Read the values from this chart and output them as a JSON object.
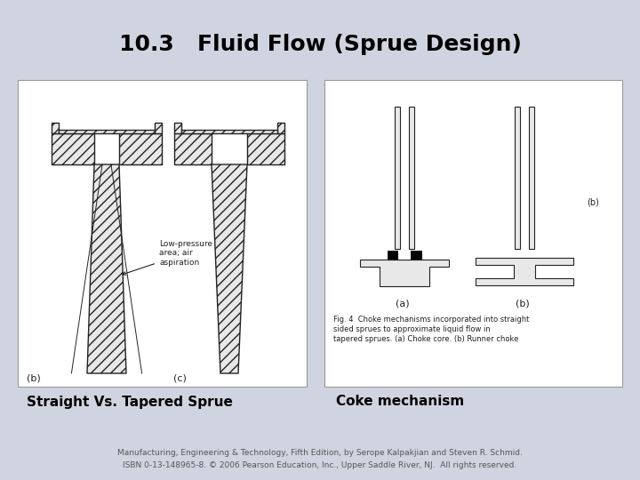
{
  "title": "10.3   Fluid Flow (Sprue Design)",
  "title_fontsize": 18,
  "title_fontweight": "bold",
  "label_left": "Straight Vs. Tapered Sprue",
  "label_right": "Coke mechanism",
  "label_fontsize": 11,
  "label_fontweight": "bold",
  "footnote_line1": "Manufacturing, Engineering & Technology, Fifth Edition, by Serope Kalpakjian and Steven R. Schmid.",
  "footnote_line2": "ISBN 0-13-148965-8. © 2006 Pearson Education, Inc., Upper Saddle River, NJ.  All rights reserved.",
  "footnote_fontsize": 6.5,
  "bg_color": "#d0d4e0",
  "box_color": "white",
  "line_color": "#222222",
  "hatch_fc": "#e8e8e8"
}
